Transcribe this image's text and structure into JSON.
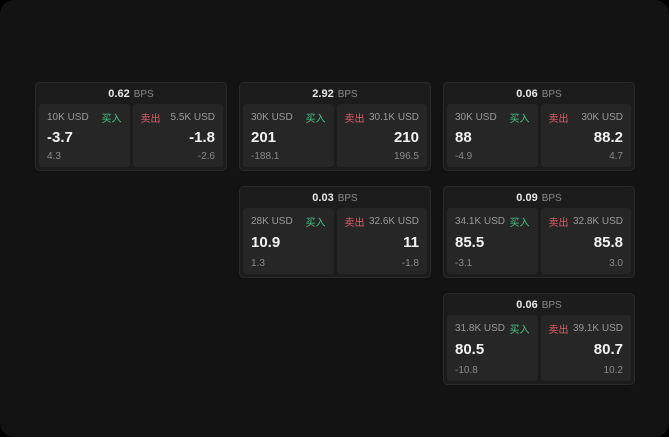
{
  "colors": {
    "background": "#131313",
    "card": "#1c1c1c",
    "panel": "#262626",
    "buy": "#46c487",
    "sell": "#e05c66",
    "text_primary": "#f2f2f2",
    "text_secondary": "#8a8a8a"
  },
  "labels": {
    "bps": "BPS",
    "buy": "买入",
    "sell": "卖出"
  },
  "cards": [
    {
      "bps": "0.62",
      "buy": {
        "size": "10K USD",
        "price": "-3.7",
        "delta": "4.3"
      },
      "sell": {
        "size": "5.5K USD",
        "price": "-1.8",
        "delta": "-2.6"
      }
    },
    {
      "bps": "2.92",
      "buy": {
        "size": "30K USD",
        "price": "201",
        "delta": "-188.1"
      },
      "sell": {
        "size": "30.1K USD",
        "price": "210",
        "delta": "196.5"
      }
    },
    {
      "bps": "0.06",
      "buy": {
        "size": "30K USD",
        "price": "88",
        "delta": "-4.9"
      },
      "sell": {
        "size": "30K USD",
        "price": "88.2",
        "delta": "4.7"
      }
    },
    {
      "bps": "0.03",
      "buy": {
        "size": "28K USD",
        "price": "10.9",
        "delta": "1.3"
      },
      "sell": {
        "size": "32.6K USD",
        "price": "11",
        "delta": "-1.8"
      }
    },
    {
      "bps": "0.09",
      "buy": {
        "size": "34.1K USD",
        "price": "85.5",
        "delta": "-3.1"
      },
      "sell": {
        "size": "32.8K USD",
        "price": "85.8",
        "delta": "3.0"
      }
    },
    {
      "bps": "0.06",
      "buy": {
        "size": "31.8K USD",
        "price": "80.5",
        "delta": "-10.8"
      },
      "sell": {
        "size": "39.1K USD",
        "price": "80.7",
        "delta": "10.2"
      }
    }
  ]
}
